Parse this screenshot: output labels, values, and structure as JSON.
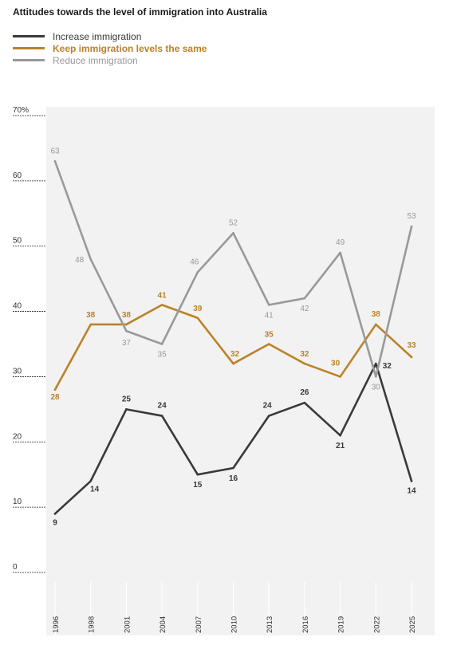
{
  "title": "Attitudes towards the level of immigration into Australia",
  "colors": {
    "increase": "#3a3a3a",
    "same": "#bb8229",
    "reduce": "#999999",
    "plot_bg": "#f2f2f2",
    "grid": "#ffffff",
    "axis_text": "#333333"
  },
  "chart_data": {
    "type": "line",
    "title": "Attitudes towards the level of immigration into Australia",
    "xlabel": "",
    "ylabel": "",
    "x": [
      "1996",
      "1998",
      "2001",
      "2004",
      "2007",
      "2010",
      "2013",
      "2016",
      "2019",
      "2022",
      "2025"
    ],
    "ylim": [
      0,
      70
    ],
    "yticks": [
      "0",
      "10",
      "20",
      "30",
      "40",
      "50",
      "60",
      "70%"
    ],
    "yticks_values": [
      0,
      10,
      20,
      30,
      40,
      50,
      60,
      70
    ],
    "legend_position": "top-left",
    "series": [
      {
        "key": "increase",
        "name": "Increase immigration",
        "values": [
          9,
          14,
          25,
          24,
          15,
          16,
          24,
          26,
          21,
          32,
          14
        ]
      },
      {
        "key": "same",
        "name": "Keep immigration levels the same",
        "values": [
          28,
          38,
          38,
          41,
          39,
          32,
          35,
          32,
          30,
          38,
          33
        ]
      },
      {
        "key": "reduce",
        "name": "Reduce immigration",
        "values": [
          63,
          48,
          37,
          35,
          46,
          52,
          41,
          42,
          49,
          30,
          53
        ]
      }
    ]
  }
}
